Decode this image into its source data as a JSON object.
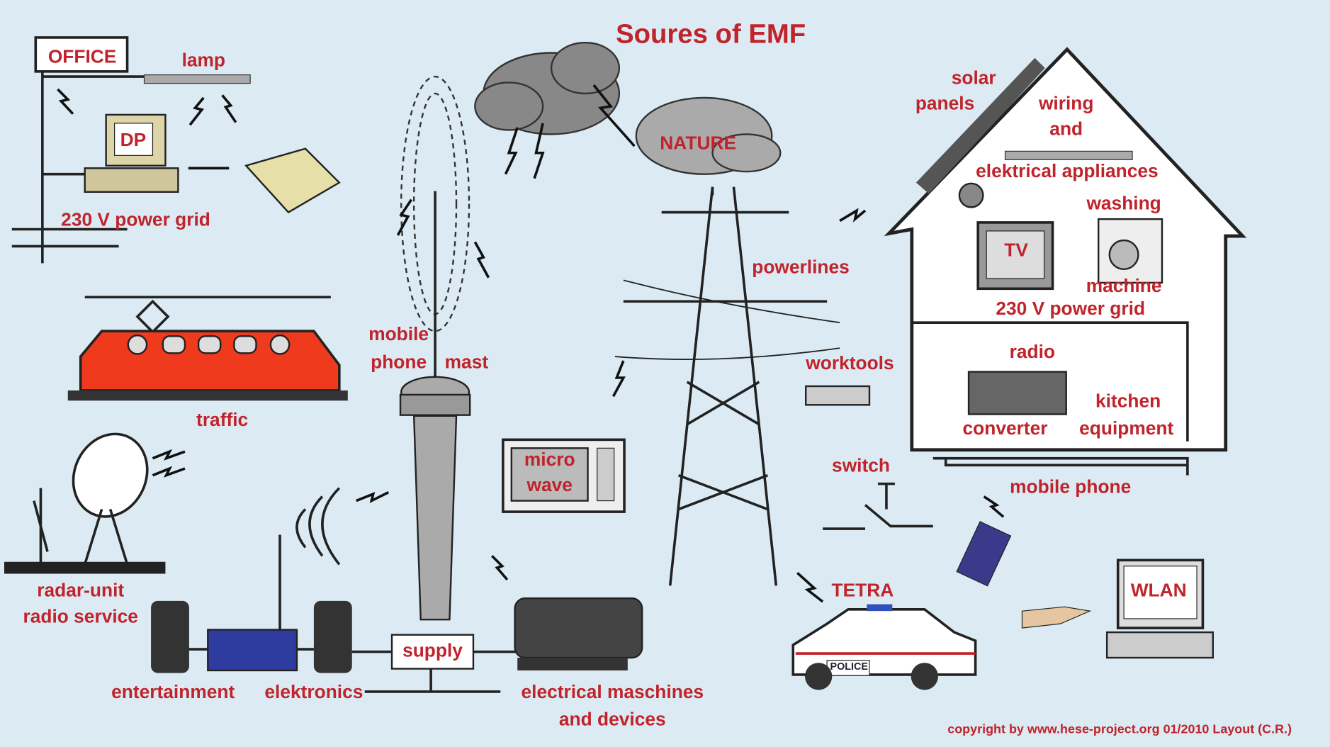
{
  "title": "Soures of EMF",
  "labels": [
    "OFFICE",
    "lamp",
    "DP",
    "230 V power grid",
    "traffic",
    "radar-unit",
    "radio service",
    "mobile",
    "phone",
    "mast",
    "NATURE",
    "micro",
    "wave",
    "powerlines",
    "solar",
    "panels",
    "wiring",
    "and",
    "elektrical appliances",
    "washing",
    "machine",
    "TV",
    "230 V power grid",
    "radio",
    "worktools",
    "kitchen",
    "equipment",
    "converter",
    "switch",
    "mobile phone",
    "TETRA",
    "POLICE",
    "WLAN",
    "supply",
    "entertainment",
    "elektronics",
    "electrical maschines",
    "and devices"
  ],
  "copyright": "copyright by www.hese-project.org 01/2010   Layout (C.R.)"
}
